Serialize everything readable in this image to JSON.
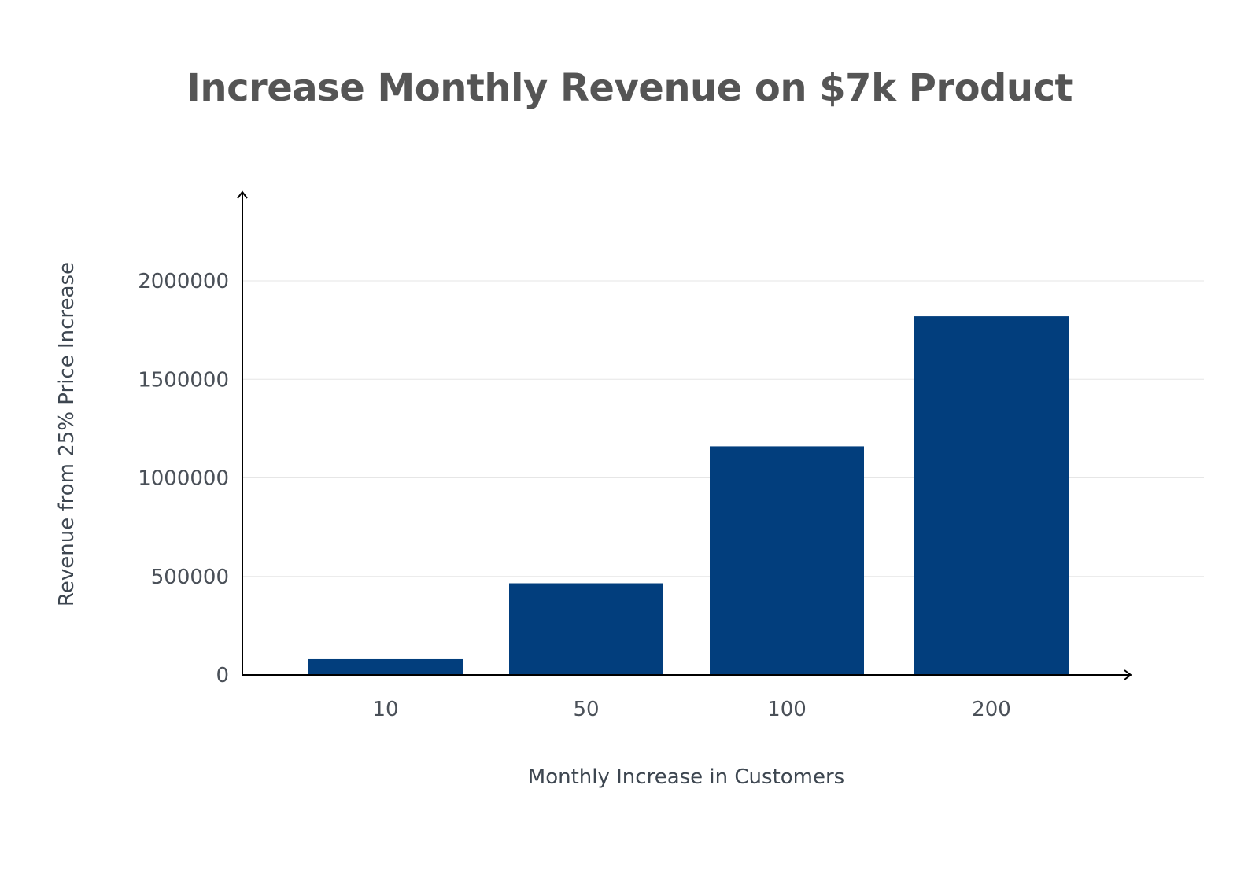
{
  "chart_data": {
    "type": "bar",
    "title": "Increase Monthly Revenue on $7k Product",
    "xlabel": "Monthly Increase in Customers",
    "ylabel": "Revenue from 25% Price Increase",
    "categories": [
      "10",
      "50",
      "100",
      "200"
    ],
    "values": [
      80000,
      465000,
      1160000,
      1820000
    ],
    "ylim": [
      0,
      2400000
    ],
    "yticks": [
      0,
      500000,
      1000000,
      1500000,
      2000000
    ],
    "ytick_labels": [
      "0",
      "500000",
      "1000000",
      "1500000",
      "2000000"
    ],
    "grid": true,
    "legend": "none",
    "colors": {
      "bar": "#023e7d",
      "grid": "#e6e6e6",
      "axis": "#000000"
    }
  }
}
